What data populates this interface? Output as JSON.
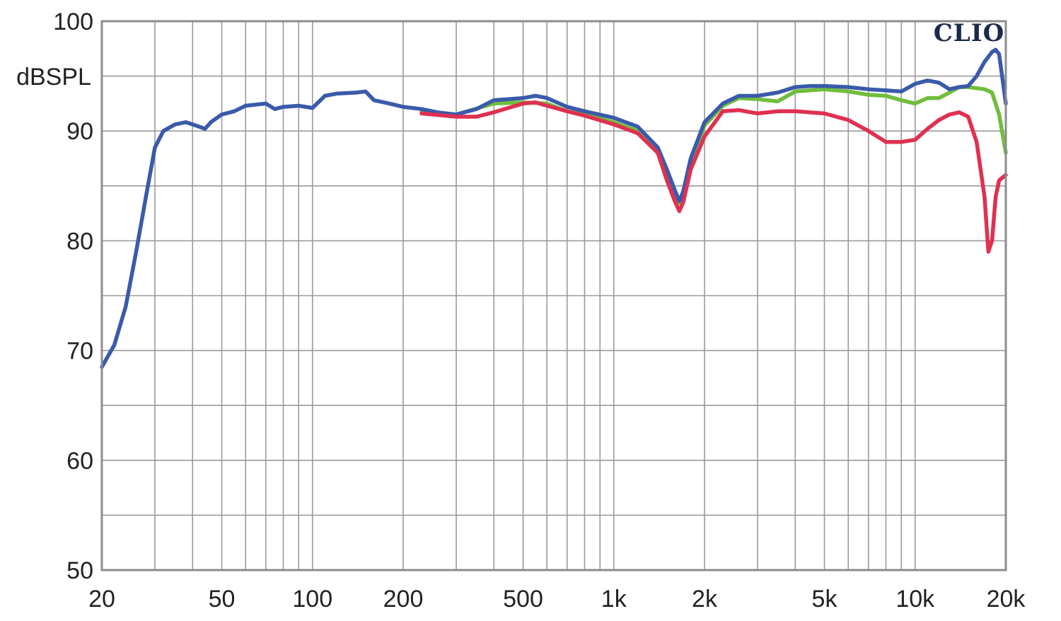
{
  "chart_data": {
    "type": "line",
    "title": "",
    "xlabel": "",
    "ylabel": "dBSPL",
    "logo": "CLIO",
    "x_scale": "log",
    "xlim": [
      20,
      20000
    ],
    "ylim": [
      50,
      100
    ],
    "grid": true,
    "x_ticks": [
      {
        "value": 20,
        "label": "20"
      },
      {
        "value": 50,
        "label": "50"
      },
      {
        "value": 100,
        "label": "100"
      },
      {
        "value": 200,
        "label": "200"
      },
      {
        "value": 500,
        "label": "500"
      },
      {
        "value": 1000,
        "label": "1k"
      },
      {
        "value": 2000,
        "label": "2k"
      },
      {
        "value": 5000,
        "label": "5k"
      },
      {
        "value": 10000,
        "label": "10k"
      },
      {
        "value": 20000,
        "label": "20k"
      }
    ],
    "y_ticks": [
      {
        "value": 50,
        "label": "50"
      },
      {
        "value": 60,
        "label": "60"
      },
      {
        "value": 70,
        "label": "70"
      },
      {
        "value": 80,
        "label": "80"
      },
      {
        "value": 90,
        "label": "90"
      },
      {
        "value": 100,
        "label": "100"
      }
    ],
    "series": [
      {
        "color": "#6fbe3c",
        "points": [
          [
            230,
            91.8
          ],
          [
            300,
            91.5
          ],
          [
            400,
            92.5
          ],
          [
            500,
            92.6
          ],
          [
            600,
            92.5
          ],
          [
            700,
            91.8
          ],
          [
            800,
            91.5
          ],
          [
            1000,
            90.8
          ],
          [
            1200,
            90
          ],
          [
            1400,
            88
          ],
          [
            1500,
            86
          ],
          [
            1600,
            84
          ],
          [
            1650,
            83.4
          ],
          [
            1700,
            84
          ],
          [
            1800,
            87
          ],
          [
            2000,
            90.5
          ],
          [
            2300,
            92.3
          ],
          [
            2600,
            93
          ],
          [
            3000,
            92.9
          ],
          [
            3500,
            92.7
          ],
          [
            4000,
            93.6
          ],
          [
            5000,
            93.8
          ],
          [
            6000,
            93.6
          ],
          [
            7000,
            93.3
          ],
          [
            8000,
            93.2
          ],
          [
            9000,
            92.8
          ],
          [
            10000,
            92.5
          ],
          [
            11000,
            93
          ],
          [
            12000,
            93
          ],
          [
            13000,
            93.5
          ],
          [
            14000,
            94
          ],
          [
            15000,
            94
          ],
          [
            16000,
            93.9
          ],
          [
            17000,
            93.8
          ],
          [
            18000,
            93.5
          ],
          [
            19000,
            91.5
          ],
          [
            20000,
            88
          ]
        ]
      },
      {
        "color": "#3a5aaa",
        "points": [
          [
            20,
            68.5
          ],
          [
            22,
            70.5
          ],
          [
            24,
            74
          ],
          [
            26,
            79
          ],
          [
            28,
            84
          ],
          [
            30,
            88.5
          ],
          [
            32,
            90
          ],
          [
            35,
            90.6
          ],
          [
            38,
            90.8
          ],
          [
            40,
            90.6
          ],
          [
            42,
            90.4
          ],
          [
            44,
            90.2
          ],
          [
            46,
            90.8
          ],
          [
            50,
            91.5
          ],
          [
            55,
            91.8
          ],
          [
            60,
            92.3
          ],
          [
            70,
            92.5
          ],
          [
            75,
            92
          ],
          [
            80,
            92.2
          ],
          [
            90,
            92.3
          ],
          [
            100,
            92.1
          ],
          [
            110,
            93.2
          ],
          [
            120,
            93.4
          ],
          [
            140,
            93.5
          ],
          [
            150,
            93.6
          ],
          [
            160,
            92.8
          ],
          [
            180,
            92.5
          ],
          [
            200,
            92.2
          ],
          [
            230,
            92
          ],
          [
            260,
            91.7
          ],
          [
            300,
            91.5
          ],
          [
            350,
            92
          ],
          [
            400,
            92.8
          ],
          [
            500,
            93
          ],
          [
            550,
            93.2
          ],
          [
            600,
            93
          ],
          [
            700,
            92.2
          ],
          [
            800,
            91.8
          ],
          [
            1000,
            91.2
          ],
          [
            1200,
            90.4
          ],
          [
            1400,
            88.5
          ],
          [
            1500,
            86.5
          ],
          [
            1600,
            84.5
          ],
          [
            1650,
            83.6
          ],
          [
            1700,
            84.5
          ],
          [
            1800,
            87.5
          ],
          [
            2000,
            90.8
          ],
          [
            2300,
            92.5
          ],
          [
            2600,
            93.2
          ],
          [
            3000,
            93.2
          ],
          [
            3500,
            93.5
          ],
          [
            4000,
            94
          ],
          [
            4500,
            94.1
          ],
          [
            5000,
            94.1
          ],
          [
            6000,
            94
          ],
          [
            7000,
            93.8
          ],
          [
            8000,
            93.7
          ],
          [
            9000,
            93.6
          ],
          [
            10000,
            94.3
          ],
          [
            11000,
            94.6
          ],
          [
            12000,
            94.4
          ],
          [
            13000,
            93.8
          ],
          [
            14000,
            94
          ],
          [
            15000,
            94.1
          ],
          [
            16000,
            95
          ],
          [
            17000,
            96.3
          ],
          [
            18000,
            97.2
          ],
          [
            18500,
            97.4
          ],
          [
            19000,
            97
          ],
          [
            20000,
            92.5
          ]
        ]
      },
      {
        "color": "#e03050",
        "points": [
          [
            230,
            91.6
          ],
          [
            300,
            91.3
          ],
          [
            350,
            91.3
          ],
          [
            400,
            91.7
          ],
          [
            500,
            92.5
          ],
          [
            550,
            92.6
          ],
          [
            600,
            92.3
          ],
          [
            700,
            91.8
          ],
          [
            800,
            91.4
          ],
          [
            1000,
            90.6
          ],
          [
            1200,
            89.8
          ],
          [
            1400,
            88
          ],
          [
            1500,
            85.5
          ],
          [
            1600,
            83.5
          ],
          [
            1650,
            82.7
          ],
          [
            1700,
            83.5
          ],
          [
            1800,
            86.5
          ],
          [
            2000,
            89.5
          ],
          [
            2300,
            91.8
          ],
          [
            2600,
            91.9
          ],
          [
            3000,
            91.6
          ],
          [
            3500,
            91.8
          ],
          [
            4000,
            91.8
          ],
          [
            5000,
            91.6
          ],
          [
            6000,
            91
          ],
          [
            7000,
            90
          ],
          [
            8000,
            89
          ],
          [
            9000,
            89
          ],
          [
            10000,
            89.2
          ],
          [
            11000,
            90.2
          ],
          [
            12000,
            91
          ],
          [
            13000,
            91.5
          ],
          [
            14000,
            91.7
          ],
          [
            15000,
            91.3
          ],
          [
            16000,
            89
          ],
          [
            17000,
            84
          ],
          [
            17500,
            79
          ],
          [
            18000,
            80
          ],
          [
            18500,
            84
          ],
          [
            19000,
            85.5
          ],
          [
            20000,
            86
          ]
        ]
      }
    ]
  }
}
